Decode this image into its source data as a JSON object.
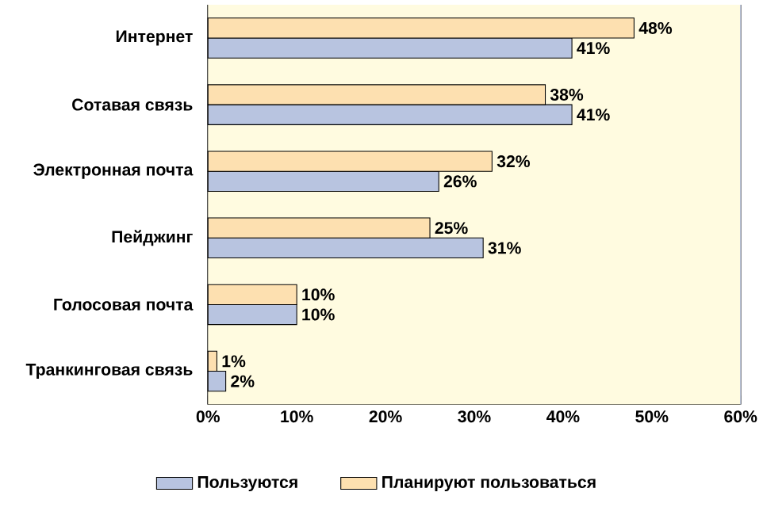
{
  "chart_data": {
    "type": "bar",
    "orientation": "horizontal",
    "categories": [
      "Интернет",
      "Сотавая связь",
      "Электронная почта",
      "Пейджинг",
      "Голосовая почта",
      "Транкинговая связь"
    ],
    "series": [
      {
        "name": "Пользуются",
        "color": "#b8c4e0",
        "values": [
          41,
          41,
          26,
          31,
          10,
          2
        ],
        "value_labels": [
          "41%",
          "41%",
          "26%",
          "31%",
          "10%",
          "2%"
        ]
      },
      {
        "name": "Планируют пользоваться",
        "color": "#fde0b0",
        "values": [
          48,
          38,
          32,
          25,
          10,
          1
        ],
        "value_labels": [
          "48%",
          "38%",
          "32%",
          "25%",
          "10%",
          "1%"
        ]
      }
    ],
    "xlim": [
      0,
      60
    ],
    "xticks": [
      {
        "value": 0,
        "label": "0%"
      },
      {
        "value": 10,
        "label": "10%"
      },
      {
        "value": 20,
        "label": "20%"
      },
      {
        "value": 30,
        "label": "30%"
      },
      {
        "value": 40,
        "label": "40%"
      },
      {
        "value": 50,
        "label": "50%"
      },
      {
        "value": 60,
        "label": "60%"
      }
    ],
    "grid": "x",
    "legend": "bottom"
  }
}
